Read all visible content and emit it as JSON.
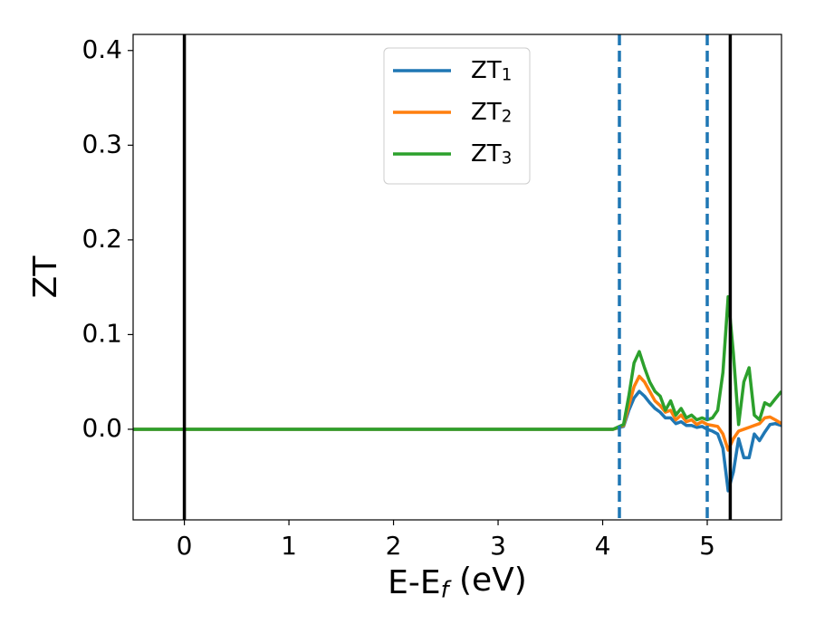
{
  "chart_data": {
    "type": "line",
    "x_label": "E-E_f (eV)",
    "y_label": "ZT",
    "x": [
      -0.49,
      4.1,
      4.2,
      4.25,
      4.3,
      4.35,
      4.4,
      4.45,
      4.5,
      4.55,
      4.6,
      4.65,
      4.7,
      4.75,
      4.8,
      4.85,
      4.9,
      4.95,
      5.0,
      5.05,
      5.1,
      5.15,
      5.2,
      5.25,
      5.3,
      5.35,
      5.4,
      5.45,
      5.5,
      5.55,
      5.6,
      5.65,
      5.71
    ],
    "series": [
      {
        "name": "ZT_1",
        "color": "#1f77b4",
        "values": [
          0,
          0,
          0.003,
          0.02,
          0.033,
          0.04,
          0.035,
          0.028,
          0.022,
          0.018,
          0.012,
          0.012,
          0.006,
          0.008,
          0.004,
          0.004,
          0.002,
          0.003,
          0.0,
          -0.002,
          -0.005,
          -0.02,
          -0.065,
          -0.045,
          -0.01,
          -0.03,
          -0.03,
          -0.005,
          -0.012,
          -0.003,
          0.005,
          0.006,
          0.004
        ]
      },
      {
        "name": "ZT_2",
        "color": "#ff7f0e",
        "values": [
          0,
          0,
          0.004,
          0.025,
          0.045,
          0.056,
          0.05,
          0.04,
          0.03,
          0.025,
          0.018,
          0.02,
          0.01,
          0.015,
          0.008,
          0.01,
          0.005,
          0.008,
          0.005,
          0.004,
          0.003,
          -0.005,
          -0.022,
          -0.01,
          -0.002,
          0.0,
          0.002,
          0.004,
          0.006,
          0.012,
          0.013,
          0.01,
          0.006
        ]
      },
      {
        "name": "ZT_3",
        "color": "#2ca02c",
        "values": [
          0,
          0,
          0.005,
          0.035,
          0.07,
          0.082,
          0.065,
          0.05,
          0.04,
          0.035,
          0.02,
          0.03,
          0.015,
          0.022,
          0.012,
          0.015,
          0.01,
          0.012,
          0.01,
          0.012,
          0.02,
          0.06,
          0.14,
          0.08,
          0.005,
          0.05,
          0.065,
          0.015,
          0.01,
          0.028,
          0.025,
          0.032,
          0.04
        ]
      }
    ],
    "vlines": [
      {
        "x": 0,
        "color": "#000000",
        "dashed": false
      },
      {
        "x": 4.16,
        "color": "#1f77b4",
        "dashed": true
      },
      {
        "x": 5.0,
        "color": "#1f77b4",
        "dashed": true
      },
      {
        "x": 5.22,
        "color": "#000000",
        "dashed": false
      }
    ],
    "xlim": [
      -0.49,
      5.71
    ],
    "ylim": [
      -0.0957,
      0.417
    ],
    "xticks": [
      0,
      1,
      2,
      3,
      4,
      5
    ],
    "yticks": [
      {
        "value": 0,
        "label": "0.0"
      },
      0.1,
      0.2,
      0.3,
      0.4
    ],
    "legend": "upper center"
  }
}
